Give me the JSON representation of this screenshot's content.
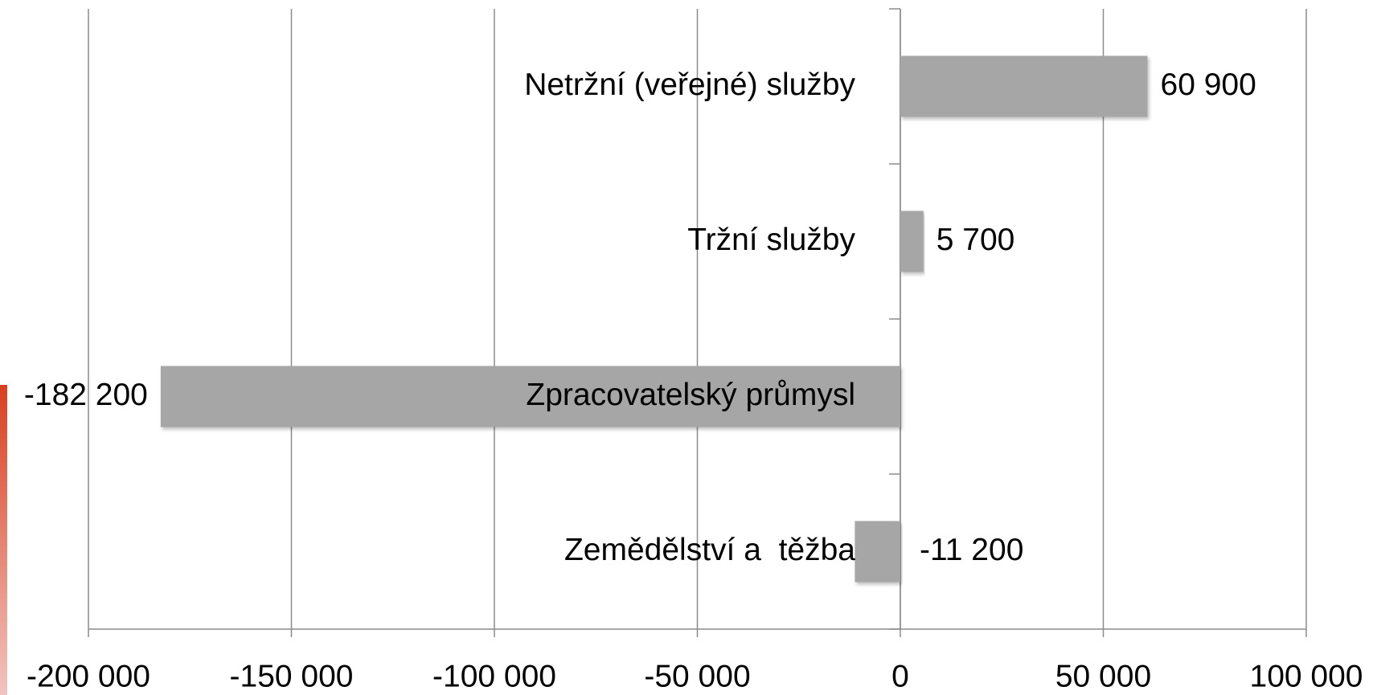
{
  "chart_data": {
    "type": "barh",
    "categories": [
      "Netržní (veřejné) služby",
      "Tržní služby",
      "Zpracovatelský průmysl",
      "Zemědělství a  těžba"
    ],
    "values": [
      60900,
      5700,
      -182200,
      -11200
    ],
    "value_labels": [
      "60 900",
      "5 700",
      "-182 200",
      "-11 200"
    ],
    "color": "#a6a6a6",
    "xlim": [
      -200000,
      100000
    ],
    "xticks": [
      {
        "value": -200000,
        "label": "-200 000"
      },
      {
        "value": -150000,
        "label": "-150 000"
      },
      {
        "value": -100000,
        "label": "-100 000"
      },
      {
        "value": -50000,
        "label": "-50 000"
      },
      0,
      {
        "value": 50000,
        "label": "50 000"
      },
      {
        "value": 100000,
        "label": "100 000"
      }
    ],
    "grid": true
  }
}
